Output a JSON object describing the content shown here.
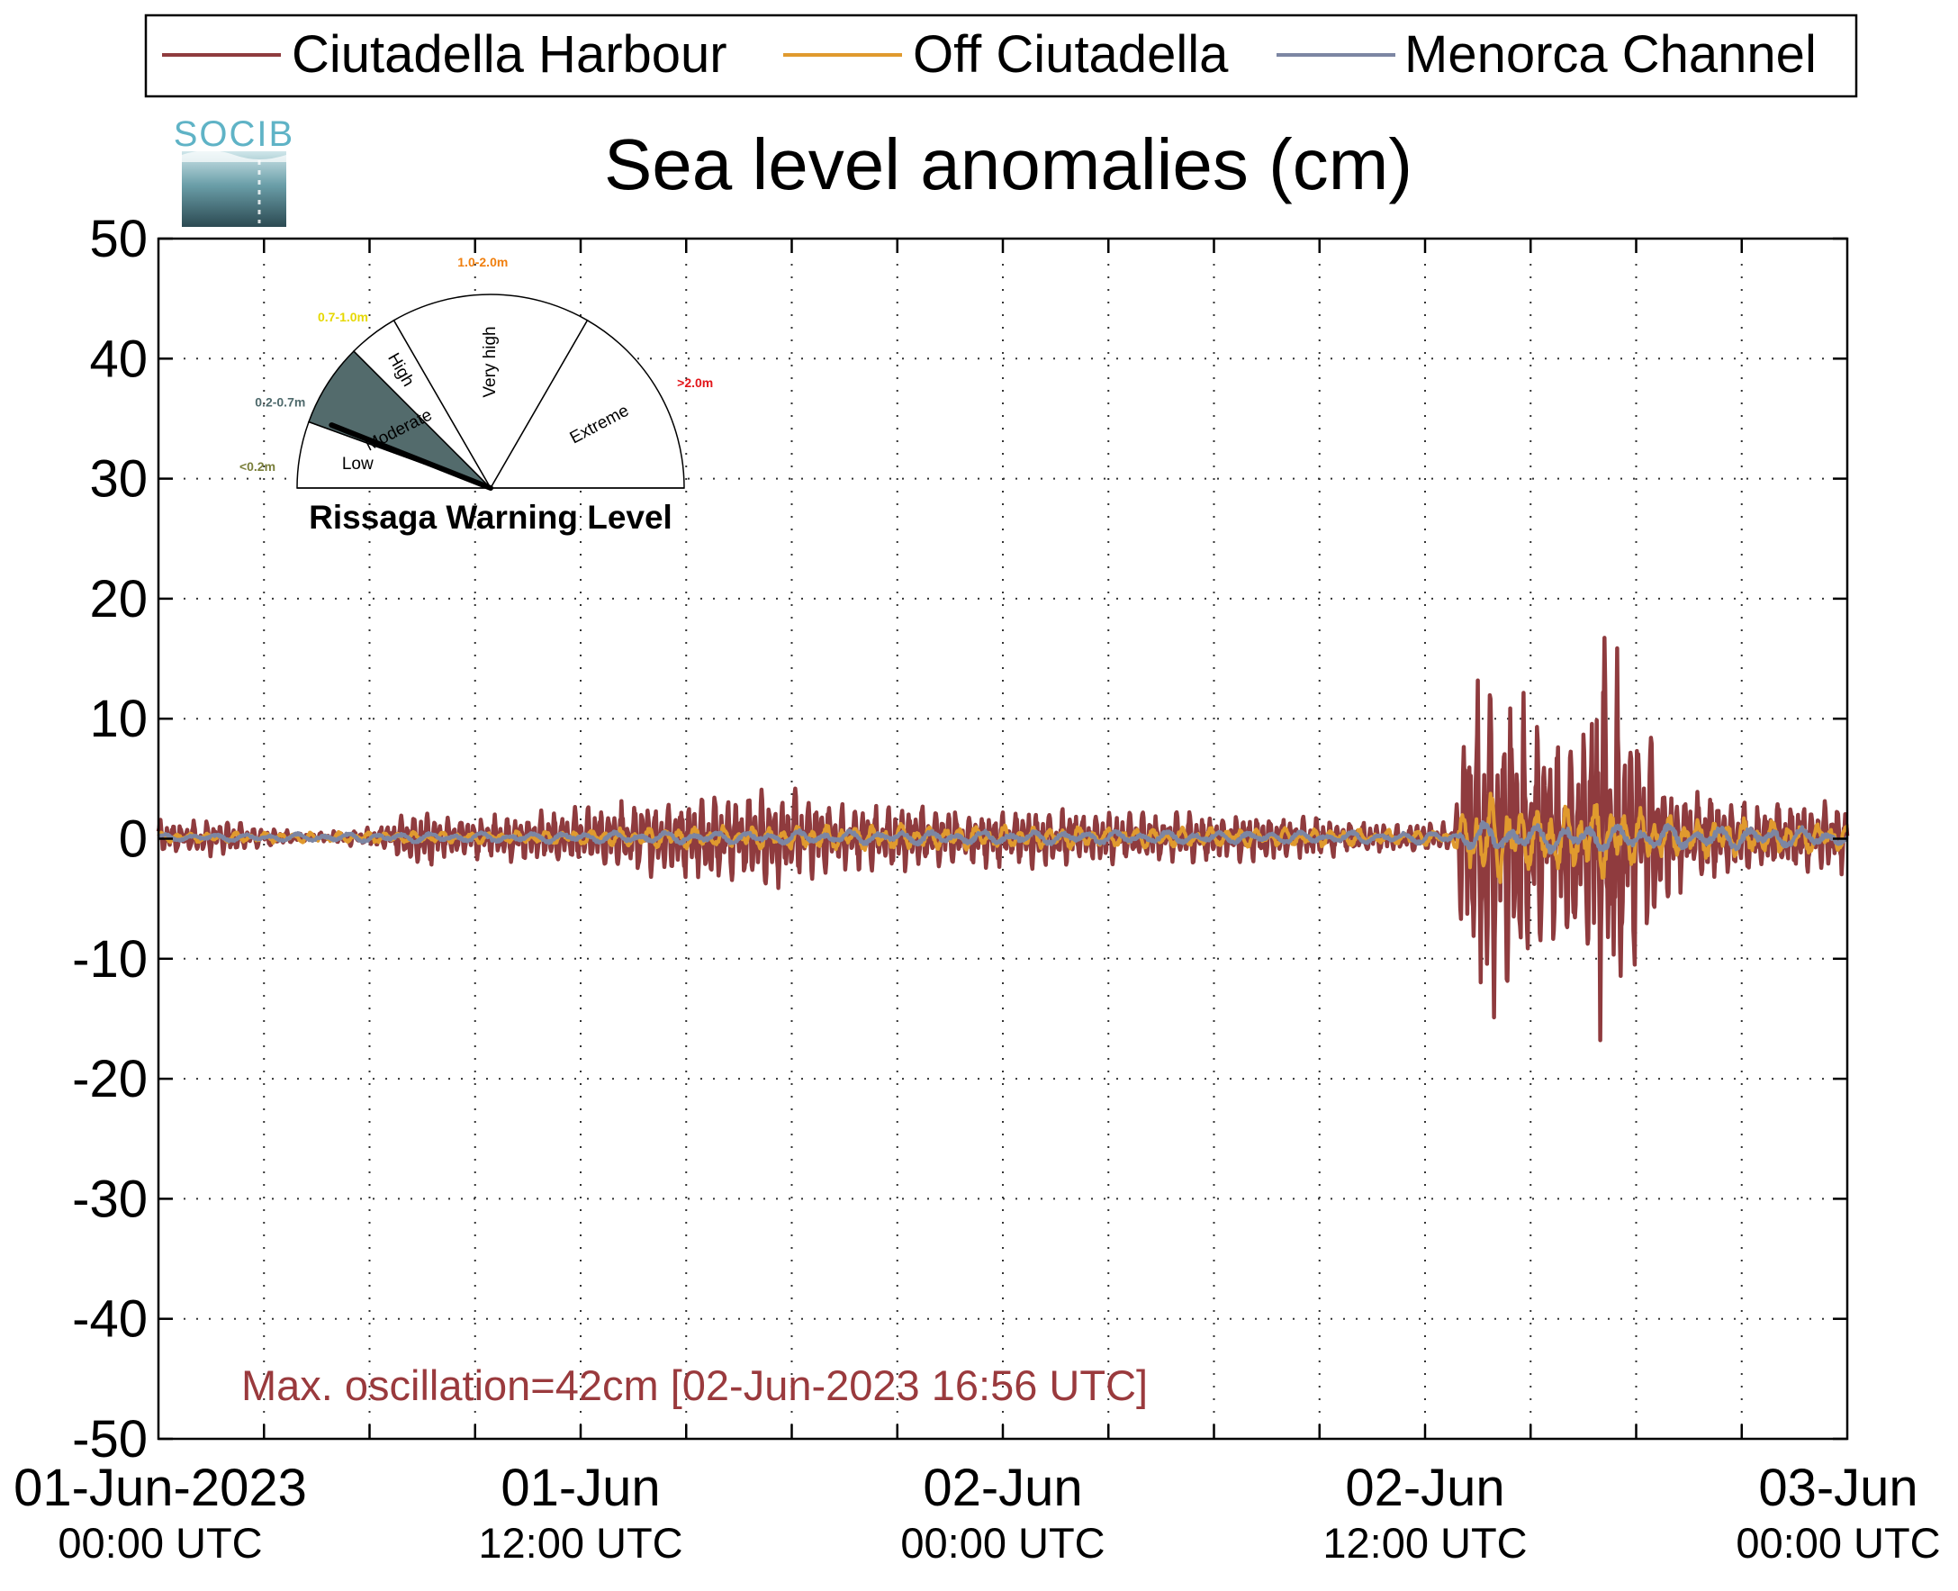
{
  "logo": {
    "text": "SOCIB"
  },
  "colors": {
    "harbour": "#8f3b3e",
    "off": "#e09a2e",
    "channel": "#7c86a3",
    "moderate_fill": "#536b6c",
    "level_low": "#7a7f3b",
    "level_moderate": "#4f6a6c",
    "level_high": "#e6d800",
    "level_veryhigh": "#f07f0e",
    "level_extreme": "#e2161a",
    "annotation": "#9a3a3d"
  },
  "chart_data": {
    "type": "line",
    "title": "Sea level anomalies (cm)",
    "xlabel": "",
    "ylabel": "",
    "ylim": [
      -50,
      50
    ],
    "yticks": [
      50,
      40,
      30,
      20,
      10,
      0,
      -10,
      -20,
      -30,
      -40,
      -50
    ],
    "xlim_hours": [
      0,
      48
    ],
    "x_start": "01-Jun-2023 00:00 UTC",
    "x_end": "03-Jun-2023 00:00 UTC",
    "xtick_labels": [
      {
        "hour": 0,
        "line1": "01-Jun-2023",
        "line2": "00:00 UTC"
      },
      {
        "hour": 12,
        "line1": "01-Jun",
        "line2": "12:00 UTC"
      },
      {
        "hour": 24,
        "line1": "02-Jun",
        "line2": "00:00 UTC"
      },
      {
        "hour": 36,
        "line1": "02-Jun",
        "line2": "12:00 UTC"
      },
      {
        "hour": 48,
        "line1": "03-Jun",
        "line2": "00:00 UTC"
      }
    ],
    "grid": true,
    "legend_position": "top",
    "series": [
      {
        "name": "Ciutadella Harbour",
        "envelope": [
          {
            "hour": 0,
            "amp": 1.5
          },
          {
            "hour": 2,
            "amp": 1.5
          },
          {
            "hour": 3,
            "amp": 0.8
          },
          {
            "hour": 4.5,
            "amp": 0.4
          },
          {
            "hour": 6,
            "amp": 0.8
          },
          {
            "hour": 7.5,
            "amp": 2.5
          },
          {
            "hour": 8.5,
            "amp": 1.6
          },
          {
            "hour": 11,
            "amp": 2.2
          },
          {
            "hour": 13.5,
            "amp": 3.0
          },
          {
            "hour": 16,
            "amp": 3.6
          },
          {
            "hour": 17.8,
            "amp": 4.5
          },
          {
            "hour": 19,
            "amp": 3.0
          },
          {
            "hour": 24,
            "amp": 2.5
          },
          {
            "hour": 27,
            "amp": 2.2
          },
          {
            "hour": 31,
            "amp": 2.0
          },
          {
            "hour": 35,
            "amp": 1.2
          },
          {
            "hour": 36.8,
            "amp": 1.3
          },
          {
            "hour": 37.2,
            "amp": 12.0
          },
          {
            "hour": 37.7,
            "amp": 16.5
          },
          {
            "hour": 38.5,
            "amp": 12.0
          },
          {
            "hour": 39.5,
            "amp": 9.5
          },
          {
            "hour": 40.5,
            "amp": 12.0
          },
          {
            "hour": 41.2,
            "amp": 19.5
          },
          {
            "hour": 42,
            "amp": 11.0
          },
          {
            "hour": 43,
            "amp": 5.0
          },
          {
            "hour": 45,
            "amp": 3.0
          },
          {
            "hour": 48,
            "amp": 3.0
          }
        ]
      },
      {
        "name": "Off Ciutadella",
        "envelope": [
          {
            "hour": 0,
            "amp": 0.4
          },
          {
            "hour": 10,
            "amp": 0.5
          },
          {
            "hour": 15,
            "amp": 0.9
          },
          {
            "hour": 20,
            "amp": 1.1
          },
          {
            "hour": 30,
            "amp": 0.8
          },
          {
            "hour": 36.8,
            "amp": 0.6
          },
          {
            "hour": 37.5,
            "amp": 4.5
          },
          {
            "hour": 39,
            "amp": 2.5
          },
          {
            "hour": 41,
            "amp": 3.5
          },
          {
            "hour": 43,
            "amp": 1.8
          },
          {
            "hour": 48,
            "amp": 1.2
          }
        ]
      },
      {
        "name": "Menorca Channel",
        "envelope": [
          {
            "hour": 0,
            "amp": 0.3
          },
          {
            "hour": 20,
            "amp": 0.6
          },
          {
            "hour": 36.8,
            "amp": 0.5
          },
          {
            "hour": 37.5,
            "amp": 1.3
          },
          {
            "hour": 41,
            "amp": 1.2
          },
          {
            "hour": 48,
            "amp": 0.8
          }
        ]
      }
    ],
    "annotation": "Max. oscillation=42cm [02-Jun-2023 16:56 UTC]"
  },
  "gauge": {
    "title": "Rissaga Warning Level",
    "active_level": "Moderate",
    "needle_fraction": 0.12,
    "sectors": [
      {
        "label": "Low",
        "range": "<0.2m",
        "color_key": "level_low"
      },
      {
        "label": "Moderate",
        "range": "0.2-0.7m",
        "color_key": "level_moderate"
      },
      {
        "label": "High",
        "range": "0.7-1.0m",
        "color_key": "level_high"
      },
      {
        "label": "Very high",
        "range": "1.0-2.0m",
        "color_key": "level_veryhigh"
      },
      {
        "label": "Extreme",
        "range": ">2.0m",
        "color_key": "level_extreme"
      }
    ]
  }
}
